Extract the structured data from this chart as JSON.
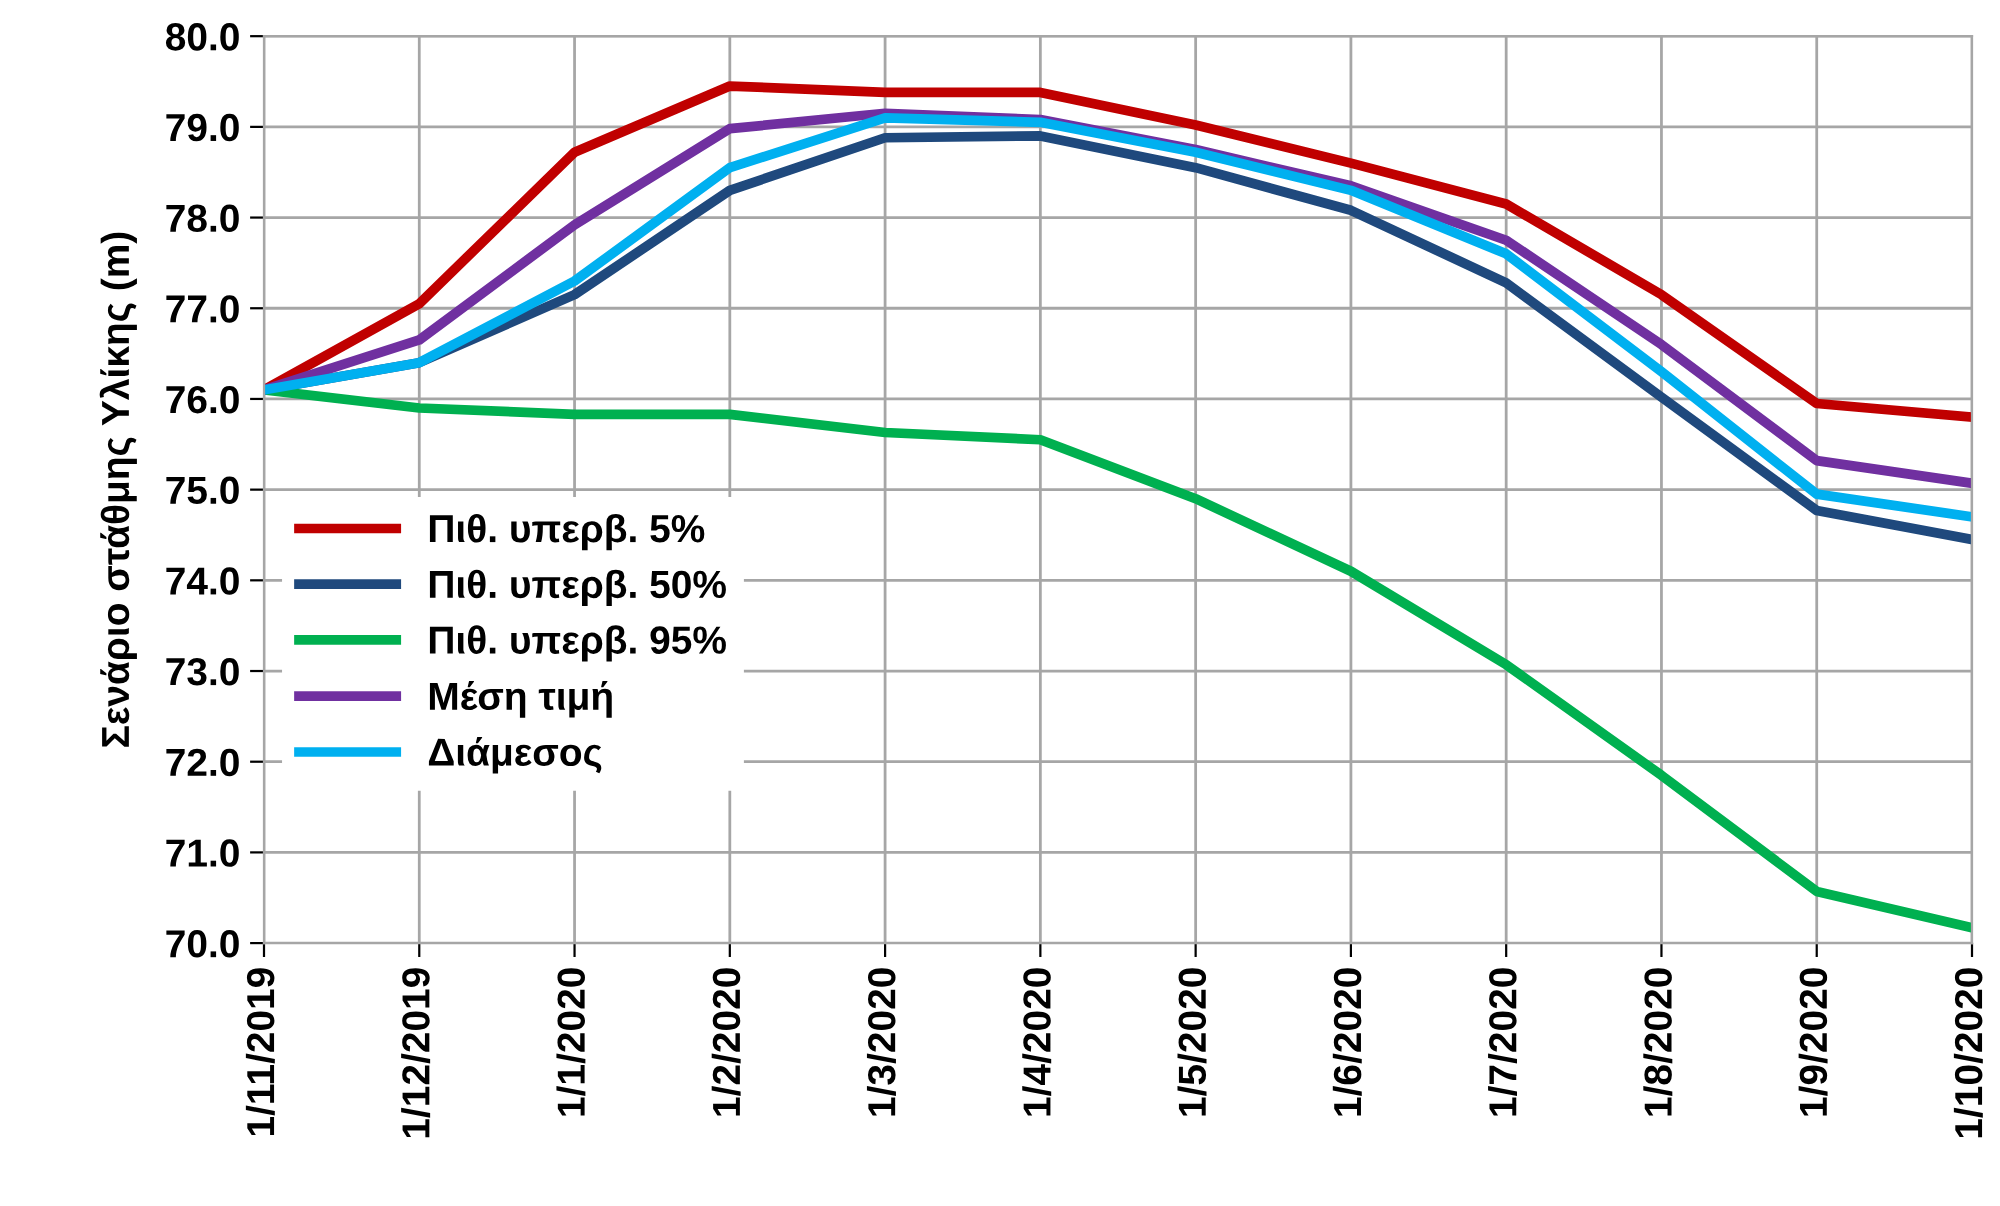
{
  "chart_data": {
    "type": "line",
    "ylabel": "Σενάριο στάθμης Υλίκης (m)",
    "categories": [
      "1/11/2019",
      "1/12/2019",
      "1/1/2020",
      "1/2/2020",
      "1/3/2020",
      "1/4/2020",
      "1/5/2020",
      "1/6/2020",
      "1/7/2020",
      "1/8/2020",
      "1/9/2020",
      "1/10/2020"
    ],
    "series": [
      {
        "name": "Πιθ. υπερβ. 5%",
        "color": "#c00000",
        "values": [
          76.1,
          77.05,
          78.72,
          79.45,
          79.38,
          79.38,
          79.02,
          78.6,
          78.15,
          77.15,
          75.95,
          75.8
        ]
      },
      {
        "name": "Πιθ. υπερβ. 50%",
        "color": "#1f497d",
        "values": [
          76.1,
          76.4,
          77.15,
          78.3,
          78.88,
          78.9,
          78.55,
          78.08,
          77.28,
          76.02,
          74.77,
          74.45
        ]
      },
      {
        "name": "Πιθ. υπερβ. 95%",
        "color": "#00b050",
        "values": [
          76.1,
          75.9,
          75.83,
          75.83,
          75.63,
          75.55,
          74.9,
          74.1,
          73.07,
          71.85,
          70.57,
          70.17
        ]
      },
      {
        "name": "Μέση τιμή",
        "color": "#7030a0",
        "values": [
          76.1,
          76.65,
          77.92,
          78.98,
          79.15,
          79.08,
          78.75,
          78.35,
          77.75,
          76.6,
          75.32,
          75.07
        ]
      },
      {
        "name": "Διάμεσος",
        "color": "#00b0f0",
        "values": [
          76.1,
          76.4,
          77.3,
          78.55,
          79.1,
          79.05,
          78.72,
          78.3,
          77.6,
          76.3,
          74.95,
          74.7
        ]
      }
    ],
    "ylim": [
      70,
      80
    ],
    "yticks": [
      {
        "value": 70,
        "label": "70.0"
      },
      {
        "value": 71,
        "label": "71.0"
      },
      {
        "value": 72,
        "label": "72.0"
      },
      {
        "value": 73,
        "label": "73.0"
      },
      {
        "value": 74,
        "label": "74.0"
      },
      {
        "value": 75,
        "label": "75.0"
      },
      {
        "value": 76,
        "label": "76.0"
      },
      {
        "value": 77,
        "label": "77.0"
      },
      {
        "value": 78,
        "label": "78.0"
      },
      {
        "value": 79,
        "label": "79.0"
      },
      {
        "value": 80,
        "label": "80.0"
      }
    ],
    "grid": true,
    "legend": "left",
    "marker": "none",
    "line_style": "solid"
  }
}
